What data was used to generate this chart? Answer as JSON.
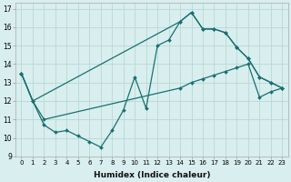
{
  "xlabel": "Humidex (Indice chaleur)",
  "xlim": [
    -0.5,
    23.5
  ],
  "ylim": [
    9,
    17.3
  ],
  "yticks": [
    9,
    10,
    11,
    12,
    13,
    14,
    15,
    16,
    17
  ],
  "xticks": [
    0,
    1,
    2,
    3,
    4,
    5,
    6,
    7,
    8,
    9,
    10,
    11,
    12,
    13,
    14,
    15,
    16,
    17,
    18,
    19,
    20,
    21,
    22,
    23
  ],
  "bg_color": "#d9eeee",
  "grid_color": "#b8d8d8",
  "line_color": "#1a7070",
  "line1_x": [
    0,
    1,
    2,
    3,
    4,
    5,
    6,
    7,
    8,
    9,
    10,
    11,
    12,
    13,
    14,
    15,
    16,
    17,
    18,
    19,
    20,
    21,
    22,
    23
  ],
  "line1_y": [
    13.5,
    12.0,
    10.7,
    10.3,
    10.4,
    10.1,
    9.8,
    9.5,
    10.4,
    11.5,
    13.3,
    11.6,
    15.0,
    15.3,
    16.3,
    16.8,
    15.9,
    15.9,
    15.7,
    14.9,
    14.3,
    13.3,
    13.0,
    12.7
  ],
  "line2_x": [
    0,
    1,
    2,
    14,
    15,
    16,
    17,
    18,
    19,
    20,
    21,
    22,
    23
  ],
  "line2_y": [
    13.5,
    12.0,
    11.0,
    12.7,
    13.0,
    13.2,
    13.4,
    13.6,
    13.8,
    14.0,
    12.2,
    12.5,
    12.7
  ],
  "line3_x": [
    0,
    1,
    14,
    15,
    16,
    17,
    18,
    19,
    20,
    21,
    22,
    23
  ],
  "line3_y": [
    13.5,
    12.0,
    16.3,
    16.8,
    15.9,
    15.9,
    15.7,
    14.9,
    14.3,
    13.3,
    13.0,
    12.7
  ],
  "markersize": 2.0,
  "linewidth": 0.9
}
